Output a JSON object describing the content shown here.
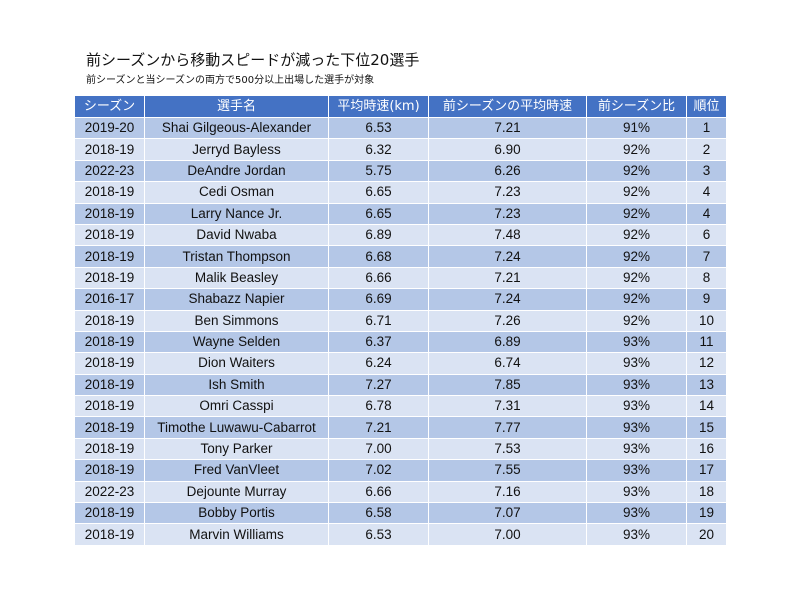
{
  "chart_data": {
    "type": "table",
    "title": "前シーズンから移動スピードが減った下位20選手",
    "subtitle": "前シーズンと当シーズンの両方で500分以上出場した選手が対象",
    "columns": [
      "シーズン",
      "選手名",
      "平均時速(km)",
      "前シーズンの平均時速",
      "前シーズン比",
      "順位"
    ],
    "rows": [
      [
        "2019-20",
        "Shai Gilgeous-Alexander",
        "6.53",
        "7.21",
        "91%",
        "1"
      ],
      [
        "2018-19",
        "Jerryd Bayless",
        "6.32",
        "6.90",
        "92%",
        "2"
      ],
      [
        "2022-23",
        "DeAndre Jordan",
        "5.75",
        "6.26",
        "92%",
        "3"
      ],
      [
        "2018-19",
        "Cedi Osman",
        "6.65",
        "7.23",
        "92%",
        "4"
      ],
      [
        "2018-19",
        "Larry Nance Jr.",
        "6.65",
        "7.23",
        "92%",
        "4"
      ],
      [
        "2018-19",
        "David Nwaba",
        "6.89",
        "7.48",
        "92%",
        "6"
      ],
      [
        "2018-19",
        "Tristan Thompson",
        "6.68",
        "7.24",
        "92%",
        "7"
      ],
      [
        "2018-19",
        "Malik Beasley",
        "6.66",
        "7.21",
        "92%",
        "8"
      ],
      [
        "2016-17",
        "Shabazz Napier",
        "6.69",
        "7.24",
        "92%",
        "9"
      ],
      [
        "2018-19",
        "Ben Simmons",
        "6.71",
        "7.26",
        "92%",
        "10"
      ],
      [
        "2018-19",
        "Wayne Selden",
        "6.37",
        "6.89",
        "93%",
        "11"
      ],
      [
        "2018-19",
        "Dion Waiters",
        "6.24",
        "6.74",
        "93%",
        "12"
      ],
      [
        "2018-19",
        "Ish Smith",
        "7.27",
        "7.85",
        "93%",
        "13"
      ],
      [
        "2018-19",
        "Omri Casspi",
        "6.78",
        "7.31",
        "93%",
        "14"
      ],
      [
        "2018-19",
        "Timothe Luwawu-Cabarrot",
        "7.21",
        "7.77",
        "93%",
        "15"
      ],
      [
        "2018-19",
        "Tony Parker",
        "7.00",
        "7.53",
        "93%",
        "16"
      ],
      [
        "2018-19",
        "Fred VanVleet",
        "7.02",
        "7.55",
        "93%",
        "17"
      ],
      [
        "2022-23",
        "Dejounte Murray",
        "6.66",
        "7.16",
        "93%",
        "18"
      ],
      [
        "2018-19",
        "Bobby Portis",
        "6.58",
        "7.07",
        "93%",
        "19"
      ],
      [
        "2018-19",
        "Marvin Williams",
        "6.53",
        "7.00",
        "93%",
        "20"
      ]
    ],
    "colors": {
      "header_bg": "#4472c4",
      "header_text": "#ffffff",
      "row_odd_bg": "#b4c7e7",
      "row_even_bg": "#dae3f3"
    }
  }
}
